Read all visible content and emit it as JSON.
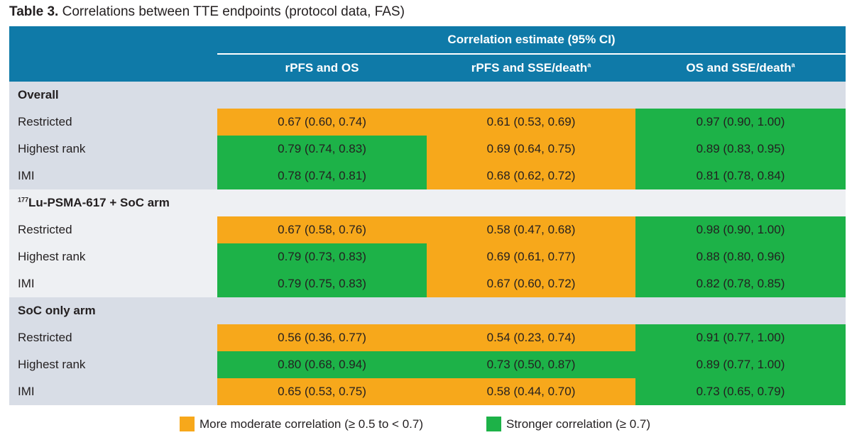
{
  "caption": {
    "label": "Table 3.",
    "text": "Correlations between TTE endpoints (protocol data, FAS)"
  },
  "header": {
    "group_title": "Correlation estimate (95% CI)",
    "columns": [
      {
        "label": "rPFS and OS",
        "sup": ""
      },
      {
        "label": "rPFS and SSE/death",
        "sup": "a"
      },
      {
        "label": "OS and SSE/death",
        "sup": "a"
      }
    ]
  },
  "colors": {
    "header_blue": "#0f7aa8",
    "moderate": "#f7a81b",
    "stronger": "#1db248",
    "gray_band": "#d8dde6",
    "light_band": "#eef0f3"
  },
  "groups": [
    {
      "title": "Overall",
      "title_sup": "",
      "title_rest": "",
      "rows": [
        {
          "label": "Restricted",
          "cells": [
            {
              "text": "0.67 (0.60, 0.74)",
              "level": "moderate"
            },
            {
              "text": "0.61 (0.53, 0.69)",
              "level": "moderate"
            },
            {
              "text": "0.97 (0.90, 1.00)",
              "level": "stronger"
            }
          ]
        },
        {
          "label": "Highest rank",
          "cells": [
            {
              "text": "0.79 (0.74, 0.83)",
              "level": "stronger"
            },
            {
              "text": "0.69 (0.64, 0.75)",
              "level": "moderate"
            },
            {
              "text": "0.89 (0.83, 0.95)",
              "level": "stronger"
            }
          ]
        },
        {
          "label": "IMI",
          "cells": [
            {
              "text": "0.78 (0.74, 0.81)",
              "level": "stronger"
            },
            {
              "text": "0.68 (0.62, 0.72)",
              "level": "moderate"
            },
            {
              "text": "0.81 (0.78, 0.84)",
              "level": "stronger"
            }
          ]
        }
      ]
    },
    {
      "title": "",
      "title_sup": "177",
      "title_rest": "Lu-PSMA-617 + SoC arm",
      "rows": [
        {
          "label": "Restricted",
          "cells": [
            {
              "text": "0.67 (0.58, 0.76)",
              "level": "moderate"
            },
            {
              "text": "0.58 (0.47, 0.68)",
              "level": "moderate"
            },
            {
              "text": "0.98 (0.90, 1.00)",
              "level": "stronger"
            }
          ]
        },
        {
          "label": "Highest rank",
          "cells": [
            {
              "text": "0.79 (0.73, 0.83)",
              "level": "stronger"
            },
            {
              "text": "0.69 (0.61, 0.77)",
              "level": "moderate"
            },
            {
              "text": "0.88 (0.80, 0.96)",
              "level": "stronger"
            }
          ]
        },
        {
          "label": "IMI",
          "cells": [
            {
              "text": "0.79 (0.75, 0.83)",
              "level": "stronger"
            },
            {
              "text": "0.67 (0.60, 0.72)",
              "level": "moderate"
            },
            {
              "text": "0.82 (0.78, 0.85)",
              "level": "stronger"
            }
          ]
        }
      ]
    },
    {
      "title": "SoC only arm",
      "title_sup": "",
      "title_rest": "",
      "rows": [
        {
          "label": "Restricted",
          "cells": [
            {
              "text": "0.56 (0.36, 0.77)",
              "level": "moderate"
            },
            {
              "text": "0.54 (0.23, 0.74)",
              "level": "moderate"
            },
            {
              "text": "0.91 (0.77, 1.00)",
              "level": "stronger"
            }
          ]
        },
        {
          "label": "Highest rank",
          "cells": [
            {
              "text": "0.80 (0.68, 0.94)",
              "level": "stronger"
            },
            {
              "text": "0.73 (0.50, 0.87)",
              "level": "stronger"
            },
            {
              "text": "0.89 (0.77, 1.00)",
              "level": "stronger"
            }
          ]
        },
        {
          "label": "IMI",
          "cells": [
            {
              "text": "0.65 (0.53, 0.75)",
              "level": "moderate"
            },
            {
              "text": "0.58 (0.44, 0.70)",
              "level": "moderate"
            },
            {
              "text": "0.73 (0.65, 0.79)",
              "level": "stronger"
            }
          ]
        }
      ]
    }
  ],
  "legend": {
    "moderate_label": "More moderate correlation (≥ 0.5 to < 0.7)",
    "stronger_label": "Stronger correlation (≥ 0.7)"
  }
}
